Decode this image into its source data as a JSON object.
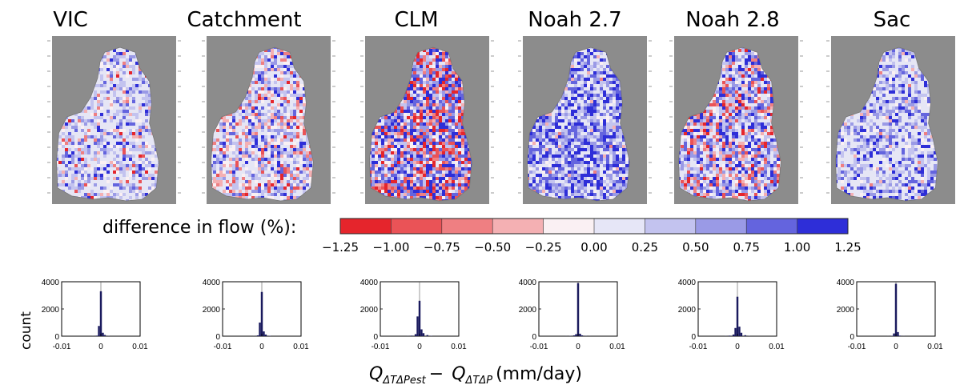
{
  "models": [
    "VIC",
    "Catchment",
    "CLM",
    "Noah 2.7",
    "Noah 2.8",
    "Sac"
  ],
  "colorbar": {
    "label": "difference in flow (%):",
    "ticks": [
      "−1.25",
      "−1.00",
      "−0.75",
      "−0.50",
      "−0.25",
      "0.00",
      "0.25",
      "0.50",
      "0.75",
      "1.00",
      "1.25"
    ],
    "colors": [
      "#e5252c",
      "#ea5357",
      "#ef7f82",
      "#f4b0b3",
      "#faf0f3",
      "#e6e6f7",
      "#c3c3ef",
      "#9a9ae6",
      "#6464de",
      "#2e2ed8"
    ]
  },
  "histograms": {
    "ylabel": "count",
    "y_ticks": [
      "4000",
      "2000",
      "0"
    ],
    "x_ticks": [
      "-0.01",
      "0",
      "0.01"
    ],
    "xlabel": {
      "q1": "Q",
      "sub1": "ΔTΔPest",
      "minus": "−",
      "q2": "Q",
      "sub2": "ΔTΔP",
      "units": "(mm/day)"
    }
  },
  "chart_data": {
    "type": "bar",
    "title": "",
    "xlabel": "QΔTΔPest − QΔTΔP (mm/day)",
    "ylabel": "count",
    "xlim": [
      -0.01,
      0.01
    ],
    "ylim": [
      0,
      4000
    ],
    "bin_centers": [
      -0.003,
      -0.002,
      -0.001,
      -0.0005,
      0,
      0.0005,
      0.001,
      0.002,
      0.003
    ],
    "series": [
      {
        "name": "VIC",
        "values": [
          0,
          10,
          40,
          750,
          3300,
          250,
          90,
          20,
          0
        ]
      },
      {
        "name": "Catchment",
        "values": [
          0,
          10,
          60,
          1000,
          3250,
          350,
          120,
          30,
          0
        ]
      },
      {
        "name": "CLM",
        "values": [
          10,
          40,
          150,
          1450,
          2600,
          500,
          220,
          80,
          20
        ]
      },
      {
        "name": "Noah 2.7",
        "values": [
          5,
          20,
          60,
          150,
          3900,
          180,
          60,
          15,
          5
        ]
      },
      {
        "name": "Noah 2.8",
        "values": [
          10,
          40,
          120,
          600,
          2900,
          700,
          250,
          70,
          20
        ]
      },
      {
        "name": "Sac",
        "values": [
          0,
          5,
          20,
          200,
          3850,
          300,
          40,
          10,
          0
        ]
      }
    ]
  }
}
